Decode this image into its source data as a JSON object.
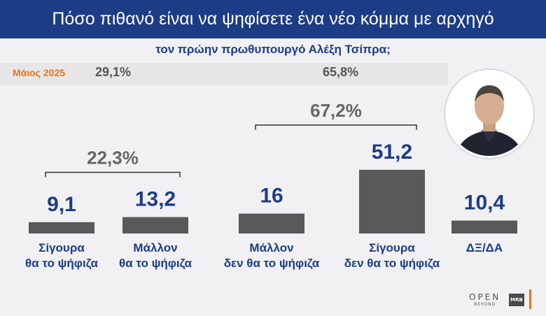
{
  "header": {
    "title": "Πόσο πιθανό είναι να ψηφίσετε ένα νέο κόμμα με αρχηγό",
    "subtitle": "τον πρώην πρωθυπουργό Αλέξη Τσίπρα;"
  },
  "previous": {
    "label": "Μάιος 2025",
    "value_left": "29,1%",
    "value_right": "65,8%"
  },
  "colors": {
    "header_bg": "#1d3c86",
    "value_text": "#1d3c86",
    "bar": "#595959",
    "bracket_text": "#666666",
    "previous_label": "#e8751c"
  },
  "chart_data": {
    "type": "bar",
    "categories": [
      [
        "Σίγουρα",
        "θα το ψήφιζα"
      ],
      [
        "Μάλλον",
        "θα το ψήφιζα"
      ],
      [
        "Μάλλον",
        "δεν θα το ψήφιζα"
      ],
      [
        "Σίγουρα",
        "δεν θα το ψήφιζα"
      ],
      [
        "ΔΞ/ΔΑ"
      ]
    ],
    "values": [
      9.1,
      13.2,
      16,
      51.2,
      10.4
    ],
    "value_labels": [
      "9,1",
      "13,2",
      "16",
      "51,2",
      "10,4"
    ],
    "groups": [
      {
        "label": "22,3%",
        "indices": [
          0,
          1
        ]
      },
      {
        "label": "67,2%",
        "indices": [
          2,
          3
        ]
      }
    ]
  },
  "branding": {
    "logo_open": "OPEN",
    "logo_open_sub": "BEYOND",
    "logo_mrb": "MRB"
  },
  "photo": {
    "icon": "person-portrait-icon"
  }
}
